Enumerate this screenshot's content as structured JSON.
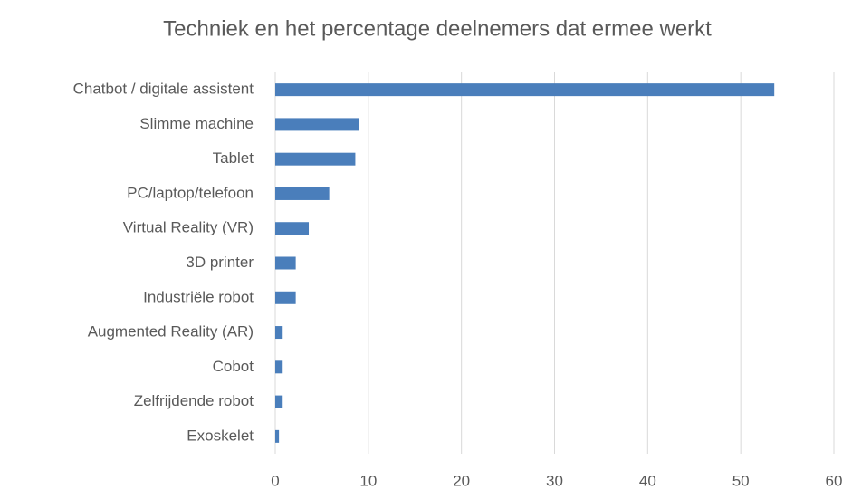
{
  "chart_data": {
    "type": "bar",
    "orientation": "horizontal",
    "title": "Techniek en het percentage deelnemers dat ermee werkt",
    "categories": [
      "Chatbot / digitale assistent",
      "Slimme machine",
      "Tablet",
      "PC/laptop/telefoon",
      "Virtual Reality (VR)",
      "3D printer",
      "Industriële robot",
      "Augmented Reality (AR)",
      "Cobot",
      "Zelfrijdende robot",
      "Exoskelet"
    ],
    "values": [
      53.6,
      9.0,
      8.6,
      5.8,
      3.6,
      2.2,
      2.2,
      0.8,
      0.8,
      0.8,
      0.4
    ],
    "color": "#4a7ebb",
    "xlim": [
      0,
      60
    ],
    "xticks": [
      0,
      10,
      20,
      30,
      40,
      50,
      60
    ],
    "grid": true
  }
}
